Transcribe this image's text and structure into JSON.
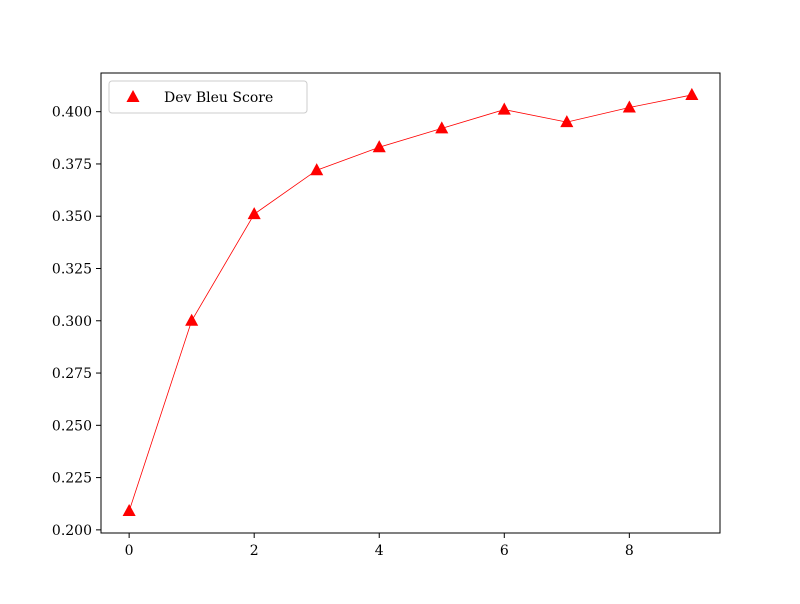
{
  "chart_data": {
    "type": "line",
    "title": "",
    "xlabel": "",
    "ylabel": "",
    "x": [
      0,
      1,
      2,
      3,
      4,
      5,
      6,
      7,
      8,
      9
    ],
    "series": [
      {
        "name": "Dev Bleu Score",
        "values": [
          0.209,
          0.3,
          0.351,
          0.372,
          0.383,
          0.392,
          0.401,
          0.395,
          0.402,
          0.408
        ],
        "color": "#ff0000",
        "marker": "triangle-up"
      }
    ],
    "xlim": [
      -0.45,
      9.45
    ],
    "ylim": [
      0.1985,
      0.4185
    ],
    "xticks": [
      0,
      2,
      4,
      6,
      8
    ],
    "xtick_labels": [
      "0",
      "2",
      "4",
      "6",
      "8"
    ],
    "yticks": [
      0.2,
      0.225,
      0.25,
      0.275,
      0.3,
      0.325,
      0.35,
      0.375,
      0.4
    ],
    "ytick_labels": [
      "0.200",
      "0.225",
      "0.250",
      "0.275",
      "0.300",
      "0.325",
      "0.350",
      "0.375",
      "0.400"
    ],
    "grid": false,
    "legend": "upper left"
  }
}
